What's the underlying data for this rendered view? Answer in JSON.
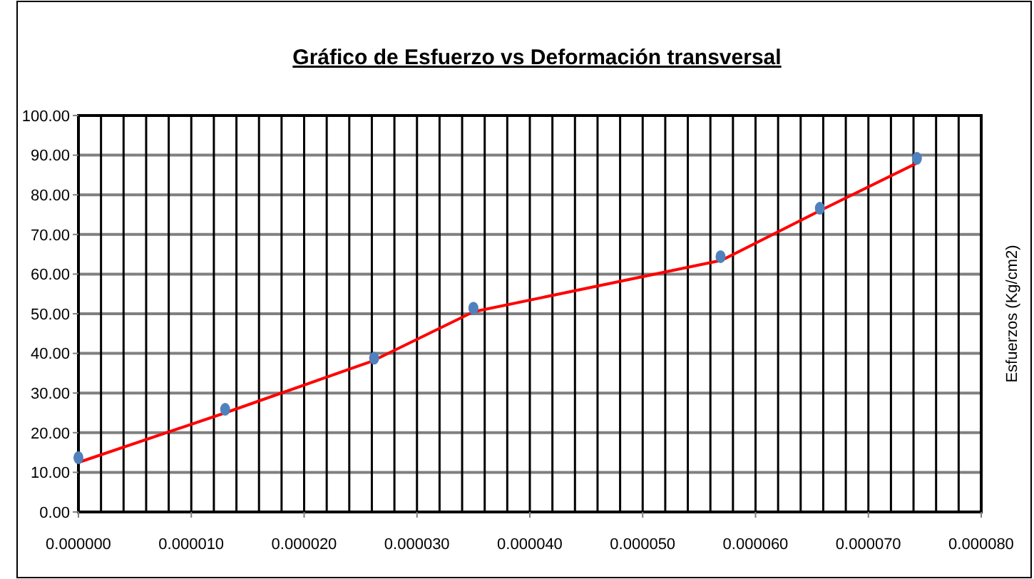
{
  "chart_data": {
    "type": "scatter",
    "title": "Gráfico de Esfuerzo vs Deformación transversal",
    "ylabel": "Esfuerzos  (Kg/cm2)",
    "xlim": [
      0,
      8e-05
    ],
    "ylim": [
      0,
      100
    ],
    "xticks": [
      {
        "value": 0,
        "label": "0.000000"
      },
      {
        "value": 2e-06,
        "label": null
      },
      {
        "value": 4e-06,
        "label": null
      },
      {
        "value": 6e-06,
        "label": null
      },
      {
        "value": 8e-06,
        "label": null
      },
      {
        "value": 1e-05,
        "label": "0.000010"
      },
      {
        "value": 1.2e-05,
        "label": null
      },
      {
        "value": 1.4e-05,
        "label": null
      },
      {
        "value": 1.6e-05,
        "label": null
      },
      {
        "value": 1.8e-05,
        "label": null
      },
      {
        "value": 2e-05,
        "label": "0.000020"
      },
      {
        "value": 2.2e-05,
        "label": null
      },
      {
        "value": 2.4e-05,
        "label": null
      },
      {
        "value": 2.6e-05,
        "label": null
      },
      {
        "value": 2.8e-05,
        "label": null
      },
      {
        "value": 3e-05,
        "label": "0.000030"
      },
      {
        "value": 3.2e-05,
        "label": null
      },
      {
        "value": 3.4e-05,
        "label": null
      },
      {
        "value": 3.6e-05,
        "label": null
      },
      {
        "value": 3.8e-05,
        "label": null
      },
      {
        "value": 4e-05,
        "label": "0.000040"
      },
      {
        "value": 4.2e-05,
        "label": null
      },
      {
        "value": 4.4e-05,
        "label": null
      },
      {
        "value": 4.6e-05,
        "label": null
      },
      {
        "value": 4.8e-05,
        "label": null
      },
      {
        "value": 5e-05,
        "label": "0.000050"
      },
      {
        "value": 5.2e-05,
        "label": null
      },
      {
        "value": 5.4e-05,
        "label": null
      },
      {
        "value": 5.6e-05,
        "label": null
      },
      {
        "value": 5.8e-05,
        "label": null
      },
      {
        "value": 6e-05,
        "label": "0.000060"
      },
      {
        "value": 6.2e-05,
        "label": null
      },
      {
        "value": 6.4e-05,
        "label": null
      },
      {
        "value": 6.6e-05,
        "label": null
      },
      {
        "value": 6.8e-05,
        "label": null
      },
      {
        "value": 7e-05,
        "label": "0.000070"
      },
      {
        "value": 7.2e-05,
        "label": null
      },
      {
        "value": 7.4e-05,
        "label": null
      },
      {
        "value": 7.6e-05,
        "label": null
      },
      {
        "value": 7.8e-05,
        "label": null
      },
      {
        "value": 8e-05,
        "label": "0.000080"
      }
    ],
    "yticks": [
      {
        "value": 0,
        "label": "0.00"
      },
      {
        "value": 10,
        "label": "10.00"
      },
      {
        "value": 20,
        "label": "20.00"
      },
      {
        "value": 30,
        "label": "30.00"
      },
      {
        "value": 40,
        "label": "40.00"
      },
      {
        "value": 50,
        "label": "50.00"
      },
      {
        "value": 60,
        "label": "60.00"
      },
      {
        "value": 70,
        "label": "70.00"
      },
      {
        "value": 80,
        "label": "80.00"
      },
      {
        "value": 90,
        "label": "90.00"
      },
      {
        "value": 100,
        "label": "100.00"
      }
    ],
    "grid": true,
    "series": [
      {
        "type": "line",
        "color": "#ff0000",
        "marker": "none",
        "line_style": "solid",
        "x": [
          0,
          1.3e-05,
          2.6e-05,
          3.5e-05,
          5.7e-05,
          6.57e-05,
          7.43e-05
        ],
        "values": [
          12.5,
          25,
          38,
          50.5,
          63.5,
          76,
          88
        ]
      },
      {
        "color": "#4f81bd",
        "marker": "circle",
        "x": [
          0,
          1.3e-05,
          2.62e-05,
          3.5e-05,
          5.69e-05,
          6.57e-05,
          7.43e-05
        ],
        "values": [
          13.7,
          25.9,
          38.8,
          51.4,
          64.4,
          76.6,
          89.2
        ]
      }
    ]
  }
}
